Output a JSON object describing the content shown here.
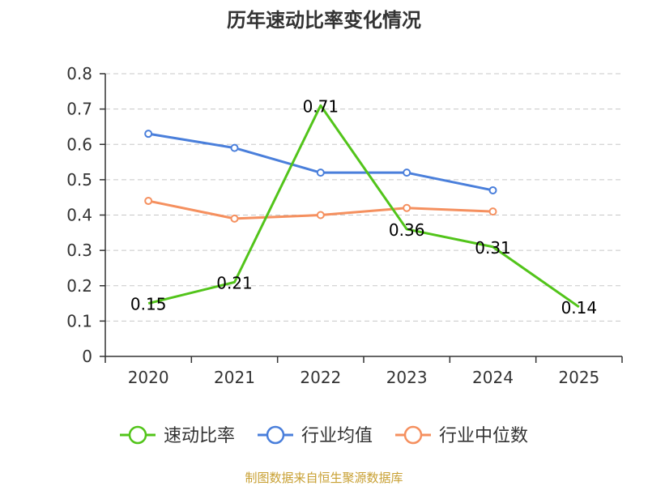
{
  "chart_data": {
    "type": "line",
    "title": "历年速动比率变化情况",
    "xlabel": "",
    "ylabel": "",
    "categories": [
      "2020",
      "2021",
      "2022",
      "2023",
      "2024",
      "2025"
    ],
    "ylim": [
      0,
      0.8
    ],
    "yticks": [
      "0",
      "0.1",
      "0.2",
      "0.3",
      "0.4",
      "0.5",
      "0.6",
      "0.7",
      "0.8"
    ],
    "grid": true,
    "legend_position": "bottom",
    "series": [
      {
        "name": "速动比率",
        "color": "#52c41a",
        "values": [
          0.15,
          0.21,
          0.71,
          0.36,
          0.31,
          0.14
        ],
        "labels": [
          "0.15",
          "0.21",
          "0.71",
          "0.36",
          "0.31",
          "0.14"
        ],
        "show_labels": true,
        "show_markers": false
      },
      {
        "name": "行业均值",
        "color": "#4a7fdb",
        "values": [
          0.63,
          0.59,
          0.52,
          0.52,
          0.47,
          null
        ],
        "show_labels": false,
        "show_markers": true
      },
      {
        "name": "行业中位数",
        "color": "#f5905f",
        "values": [
          0.44,
          0.39,
          0.4,
          0.42,
          0.41,
          null
        ],
        "show_labels": false,
        "show_markers": true
      }
    ]
  },
  "source": "制图数据来自恒生聚源数据库"
}
